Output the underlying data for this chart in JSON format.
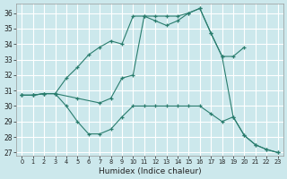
{
  "xlabel": "Humidex (Indice chaleur)",
  "background_color": "#cce8ec",
  "grid_color": "#ffffff",
  "line_color": "#2a7d6e",
  "xlim": [
    -0.5,
    23.5
  ],
  "ylim": [
    26.8,
    36.6
  ],
  "yticks": [
    27,
    28,
    29,
    30,
    31,
    32,
    33,
    34,
    35,
    36
  ],
  "xticks": [
    0,
    1,
    2,
    3,
    4,
    5,
    6,
    7,
    8,
    9,
    10,
    11,
    12,
    13,
    14,
    15,
    16,
    17,
    18,
    19,
    20,
    21,
    22,
    23
  ],
  "series_top": [
    [
      0,
      30.7
    ],
    [
      1,
      30.7
    ],
    [
      2,
      30.8
    ],
    [
      3,
      30.8
    ],
    [
      4,
      31.8
    ],
    [
      5,
      32.5
    ],
    [
      6,
      33.3
    ],
    [
      7,
      33.8
    ],
    [
      8,
      34.2
    ],
    [
      9,
      34.0
    ],
    [
      10,
      35.8
    ],
    [
      11,
      35.8
    ],
    [
      12,
      35.8
    ],
    [
      13,
      35.8
    ],
    [
      14,
      35.8
    ],
    [
      15,
      36.0
    ],
    [
      16,
      36.3
    ],
    [
      17,
      34.7
    ],
    [
      18,
      33.2
    ],
    [
      19,
      33.2
    ],
    [
      20,
      33.8
    ]
  ],
  "series_mid": [
    [
      0,
      30.7
    ],
    [
      1,
      30.7
    ],
    [
      2,
      30.8
    ],
    [
      3,
      30.8
    ],
    [
      5,
      30.5
    ],
    [
      7,
      30.2
    ],
    [
      8,
      30.5
    ],
    [
      9,
      31.8
    ],
    [
      10,
      32.0
    ],
    [
      11,
      35.8
    ],
    [
      12,
      35.5
    ],
    [
      13,
      35.2
    ],
    [
      14,
      35.5
    ],
    [
      15,
      36.0
    ],
    [
      16,
      36.3
    ],
    [
      17,
      34.7
    ],
    [
      18,
      33.2
    ],
    [
      19,
      29.3
    ],
    [
      20,
      28.1
    ],
    [
      21,
      27.5
    ],
    [
      22,
      27.2
    ],
    [
      23,
      27.0
    ]
  ],
  "series_bot": [
    [
      0,
      30.7
    ],
    [
      1,
      30.7
    ],
    [
      2,
      30.8
    ],
    [
      3,
      30.8
    ],
    [
      4,
      30.0
    ],
    [
      5,
      29.0
    ],
    [
      6,
      28.2
    ],
    [
      7,
      28.2
    ],
    [
      8,
      28.5
    ],
    [
      9,
      29.3
    ],
    [
      10,
      30.0
    ],
    [
      11,
      30.0
    ],
    [
      12,
      30.0
    ],
    [
      13,
      30.0
    ],
    [
      14,
      30.0
    ],
    [
      15,
      30.0
    ],
    [
      16,
      30.0
    ],
    [
      17,
      29.5
    ],
    [
      18,
      29.0
    ],
    [
      19,
      29.3
    ],
    [
      20,
      28.1
    ],
    [
      21,
      27.5
    ],
    [
      22,
      27.2
    ],
    [
      23,
      27.0
    ]
  ]
}
